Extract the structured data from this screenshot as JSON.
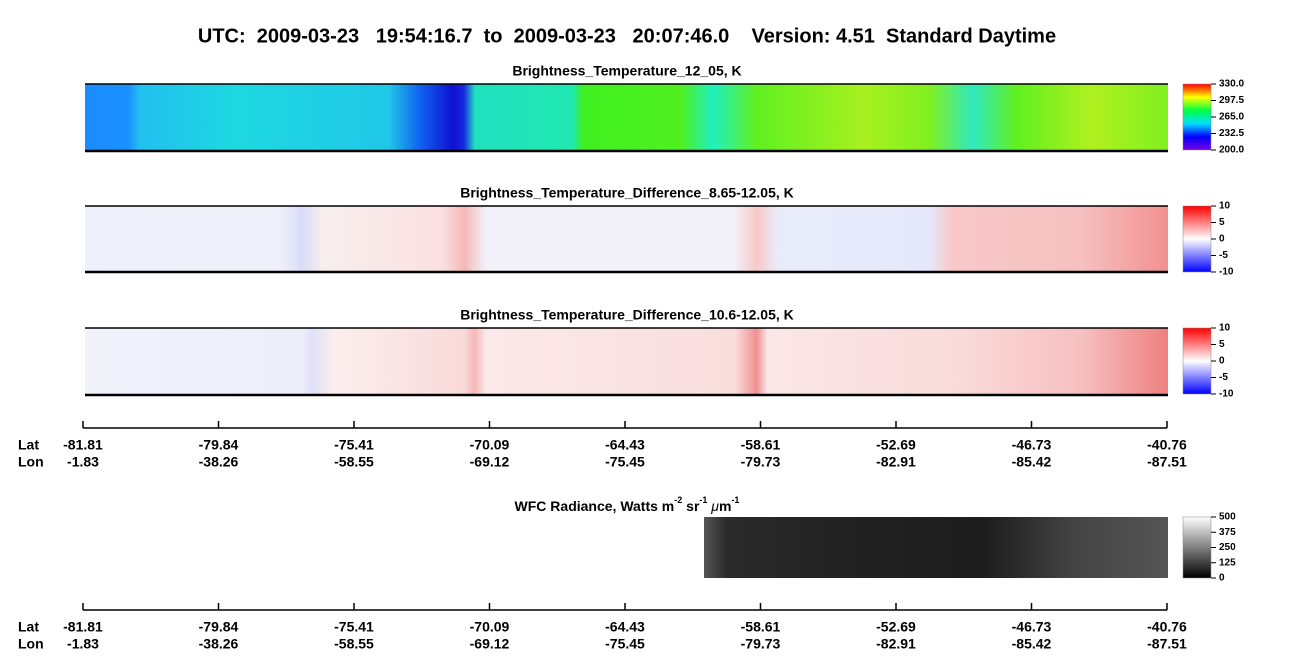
{
  "title": "UTC:  2009-03-23   19:54:16.7  to  2009-03-23   20:07:46.0    Version: 4.51  Standard Daytime",
  "panels": [
    {
      "title": "Brightness_Temperature_12_05, K",
      "clim": [
        200,
        330
      ],
      "cticks": [
        {
          "value": 330,
          "label": "330.0"
        },
        {
          "value": 297.5,
          "label": "297.5"
        },
        {
          "value": 265,
          "label": "265.0"
        },
        {
          "value": 232.5,
          "label": "232.5"
        },
        {
          "value": 200,
          "label": "200.0"
        }
      ],
      "colormap": [
        "#7a00e0",
        "#0000ff",
        "#00e0ff",
        "#00ff40",
        "#ffff00",
        "#ff0000"
      ]
    },
    {
      "title": "Brightness_Temperature_Difference_8.65-12.05, K",
      "clim": [
        -10,
        10
      ],
      "cticks": [
        10,
        5,
        0,
        -5,
        -10
      ],
      "colormap": [
        "#0000ff",
        "#ffffff",
        "#ff0000"
      ]
    },
    {
      "title": "Brightness_Temperature_Difference_10.6-12.05, K",
      "clim": [
        -10,
        10
      ],
      "cticks": [
        10,
        5,
        0,
        -5,
        -10
      ],
      "colormap": [
        "#0000ff",
        "#ffffff",
        "#ff0000"
      ]
    },
    {
      "title_parts": [
        "WFC Radiance, Watts m",
        "-2",
        " sr",
        "-1",
        " μ",
        "m",
        "-1"
      ],
      "clim": [
        0,
        500
      ],
      "cticks": [
        500,
        375,
        250,
        125,
        0
      ],
      "colormap": [
        "#000000",
        "#ffffff"
      ]
    }
  ],
  "axes": [
    {
      "lat_label": "Lat",
      "lon_label": "Lon",
      "lat": [
        -81.81,
        -79.84,
        -75.41,
        -70.09,
        -64.43,
        -58.61,
        -52.69,
        -46.73,
        -40.76
      ],
      "lon": [
        -1.83,
        -38.26,
        -58.55,
        -69.12,
        -75.45,
        -79.73,
        -82.91,
        -85.42,
        -87.51
      ]
    },
    {
      "lat_label": "Lat",
      "lon_label": "Lon",
      "lat": [
        -81.81,
        -79.84,
        -75.41,
        -70.09,
        -64.43,
        -58.61,
        -52.69,
        -46.73,
        -40.76
      ],
      "lon": [
        -1.83,
        -38.26,
        -58.55,
        -69.12,
        -75.45,
        -79.73,
        -82.91,
        -85.42,
        -87.51
      ]
    }
  ]
}
